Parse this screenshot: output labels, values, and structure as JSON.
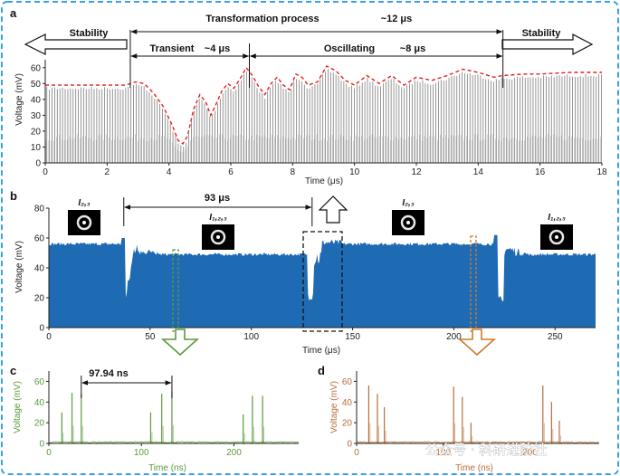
{
  "watermark": "公众号 · 科研进阶社",
  "chart_data": [
    {
      "panel": "a",
      "type": "line",
      "xlabel": "Time (μs)",
      "ylabel": "Voltage (mV)",
      "xlim": [
        0,
        18
      ],
      "ylim": [
        0,
        65
      ],
      "xticks": [
        "0",
        "2",
        "4",
        "6",
        "8",
        "10",
        "12",
        "14",
        "16",
        "18"
      ],
      "yticks": [
        "0",
        "10",
        "20",
        "30",
        "40",
        "50",
        "60"
      ],
      "envelope": {
        "style": "red-dashed",
        "x": [
          0,
          1,
          2,
          2.6,
          2.9,
          3.2,
          3.5,
          3.8,
          4.1,
          4.3,
          4.45,
          4.6,
          4.8,
          5.0,
          5.2,
          5.35,
          5.5,
          5.7,
          5.9,
          6.1,
          6.3,
          6.5,
          6.7,
          6.9,
          7.1,
          7.3,
          7.5,
          7.7,
          7.9,
          8.1,
          8.3,
          8.5,
          8.8,
          9.1,
          9.4,
          9.7,
          10,
          10.4,
          10.8,
          11.2,
          11.6,
          12,
          12.5,
          13,
          13.5,
          14,
          14.5,
          14.8,
          15.5,
          16,
          17,
          18
        ],
        "y": [
          49,
          49,
          49,
          49,
          51,
          50,
          44,
          36,
          24,
          14,
          12,
          17,
          34,
          43,
          38,
          30,
          36,
          45,
          50,
          47,
          53,
          60,
          55,
          48,
          43,
          50,
          54,
          49,
          46,
          56,
          54,
          49,
          51,
          61,
          58,
          52,
          49,
          55,
          50,
          55,
          49,
          54,
          52,
          55,
          59,
          57,
          54,
          55,
          56,
          56,
          57,
          57
        ]
      },
      "annotations": {
        "stability_left": "Stability",
        "stability_right": "Stability",
        "transformation": "Transformation process",
        "transformation_duration": "~12 μs",
        "transient": "Transient",
        "transient_duration": "~4 μs",
        "oscillating": "Oscillating",
        "oscillating_duration": "~8 μs",
        "markers_x": [
          2.75,
          6.6,
          14.8
        ]
      }
    },
    {
      "panel": "b",
      "type": "area",
      "xlabel": "Time (μs)",
      "ylabel": "Voltage (mV)",
      "xlim": [
        0,
        270
      ],
      "ylim": [
        0,
        80
      ],
      "xticks": [
        "0",
        "50",
        "100",
        "150",
        "200",
        "250"
      ],
      "yticks": [
        "0",
        "20",
        "40",
        "60",
        "80"
      ],
      "color": "#1f6bb3",
      "interval_label": "93 μs",
      "interval": [
        37,
        130
      ],
      "state_labels": [
        {
          "text": "I₂,₃",
          "x": 13
        },
        {
          "text": "I₁,₂,₃",
          "x": 82
        },
        {
          "text": "I₂,₃",
          "x": 178
        },
        {
          "text": "I₁,₂,₃",
          "x": 252
        }
      ]
    },
    {
      "panel": "c",
      "type": "line",
      "xlabel": "Time (ns)",
      "ylabel": "Voltage (mV)",
      "xlim": [
        0,
        270
      ],
      "ylim": [
        0,
        70
      ],
      "xticks": [
        "0",
        "100",
        "200"
      ],
      "yticks": [
        "0",
        "20",
        "40",
        "60"
      ],
      "color": "#5a9a3a",
      "interval_label": "97.94 ns",
      "spikes": [
        {
          "t": 14,
          "v": 30
        },
        {
          "t": 25,
          "v": 49
        },
        {
          "t": 35,
          "v": 48
        },
        {
          "t": 110,
          "v": 30
        },
        {
          "t": 122,
          "v": 48
        },
        {
          "t": 133,
          "v": 50
        },
        {
          "t": 210,
          "v": 28
        },
        {
          "t": 220,
          "v": 46
        },
        {
          "t": 231,
          "v": 46
        }
      ]
    },
    {
      "panel": "d",
      "type": "line",
      "xlabel": "Time (ns)",
      "ylabel": "Voltage (mV)",
      "xlim": [
        0,
        280
      ],
      "ylim": [
        0,
        70
      ],
      "xticks": [
        "0",
        "100",
        "200"
      ],
      "yticks": [
        "0",
        "20",
        "40",
        "60"
      ],
      "color": "#b86e3a",
      "spikes": [
        {
          "t": 14,
          "v": 56
        },
        {
          "t": 24,
          "v": 48
        },
        {
          "t": 32,
          "v": 35
        },
        {
          "t": 112,
          "v": 55
        },
        {
          "t": 122,
          "v": 45
        },
        {
          "t": 132,
          "v": 20
        },
        {
          "t": 215,
          "v": 56
        },
        {
          "t": 225,
          "v": 40
        },
        {
          "t": 234,
          "v": 22
        }
      ]
    }
  ]
}
